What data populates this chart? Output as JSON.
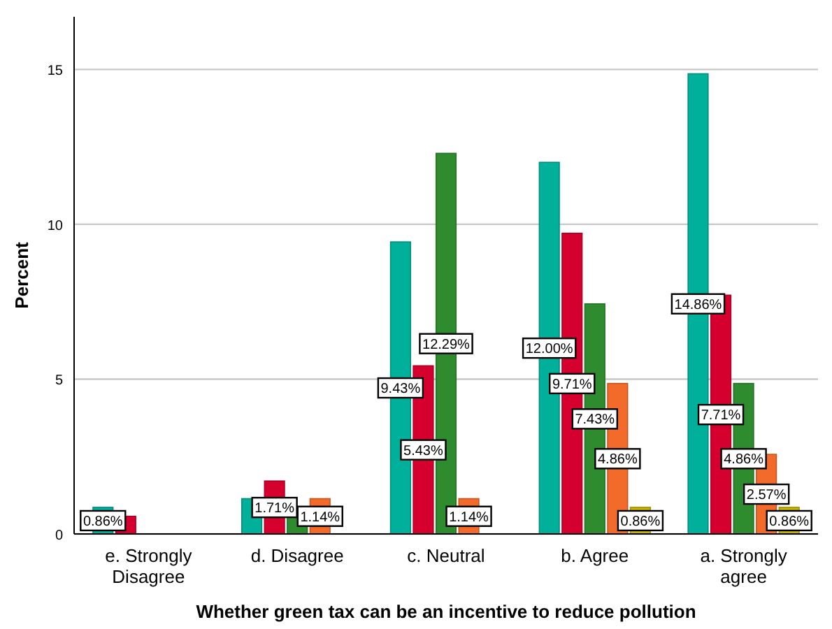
{
  "chart_data": {
    "type": "bar",
    "xlabel": "Whether green tax can be an incentive to reduce pollution",
    "ylabel": "Percent",
    "categories": [
      "e. Strongly Disagree",
      "d. Disagree",
      "c. Neutral",
      "b. Agree",
      "a. Strongly agree"
    ],
    "series": [
      {
        "color": "#00b09b",
        "values": [
          0.86,
          1.14,
          9.43,
          12.0,
          14.86
        ],
        "value_labels": [
          "0.86%",
          null,
          "9.43%",
          "12.00%",
          "14.86%"
        ]
      },
      {
        "color": "#d6002f",
        "values": [
          0.57,
          1.71,
          5.43,
          9.71,
          7.71
        ],
        "value_labels": [
          null,
          "1.71%",
          "5.43%",
          "9.71%",
          "7.71%"
        ]
      },
      {
        "color": "#2e8b2e",
        "values": [
          null,
          0.57,
          12.29,
          7.43,
          4.86
        ],
        "value_labels": [
          null,
          null,
          "12.29%",
          "7.43%",
          "4.86%"
        ]
      },
      {
        "color": "#f26b2a",
        "values": [
          null,
          1.14,
          1.14,
          4.86,
          2.57
        ],
        "value_labels": [
          null,
          "1.14%",
          "1.14%",
          "4.86%",
          "2.57%"
        ]
      },
      {
        "color": "#c8b400",
        "values": [
          null,
          null,
          null,
          0.86,
          0.86
        ],
        "value_labels": [
          null,
          null,
          null,
          "0.86%",
          "0.86%"
        ]
      }
    ],
    "ylim": [
      0,
      16.7
    ],
    "yticks": [
      0,
      5,
      10,
      15
    ],
    "grid": "y"
  }
}
